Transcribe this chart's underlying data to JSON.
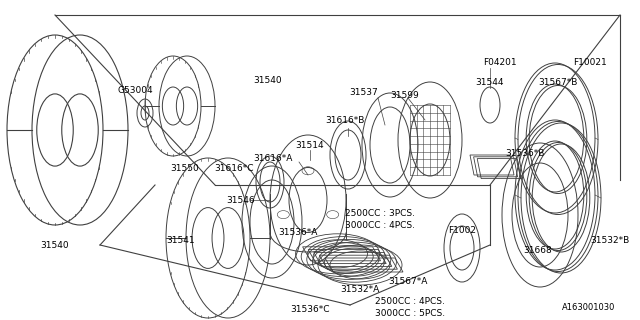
{
  "bg_color": "#ffffff",
  "line_color": "#404040",
  "text_color": "#000000",
  "font_size": 6.5,
  "diagram_ref": "A163001030",
  "annotations_upper": [
    "2500CC : 3PCS.",
    "3000CC : 4PCS."
  ],
  "annotations_lower": [
    "2500CC : 4PCS.",
    "3000CC : 5PCS."
  ]
}
